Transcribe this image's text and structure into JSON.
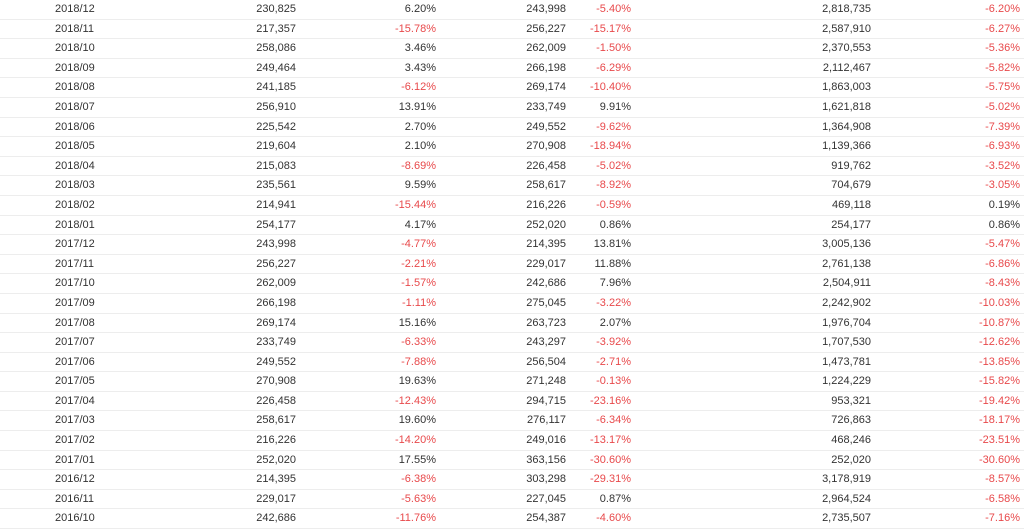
{
  "colors": {
    "text": "#333333",
    "negative": "#e8494b",
    "row_border": "#ededed",
    "background": "#ffffff"
  },
  "table": {
    "column_names": [
      "date-cell",
      "monthly-value-cell",
      "mom-change-cell",
      "prior-period-value-cell",
      "yoy-change-cell",
      "cumulative-value-cell",
      "cumulative-change-cell"
    ],
    "rows": [
      [
        "2018/12",
        "230,825",
        "6.20%",
        "243,998",
        "-5.40%",
        "2,818,735",
        "-6.20%"
      ],
      [
        "2018/11",
        "217,357",
        "-15.78%",
        "256,227",
        "-15.17%",
        "2,587,910",
        "-6.27%"
      ],
      [
        "2018/10",
        "258,086",
        "3.46%",
        "262,009",
        "-1.50%",
        "2,370,553",
        "-5.36%"
      ],
      [
        "2018/09",
        "249,464",
        "3.43%",
        "266,198",
        "-6.29%",
        "2,112,467",
        "-5.82%"
      ],
      [
        "2018/08",
        "241,185",
        "-6.12%",
        "269,174",
        "-10.40%",
        "1,863,003",
        "-5.75%"
      ],
      [
        "2018/07",
        "256,910",
        "13.91%",
        "233,749",
        "9.91%",
        "1,621,818",
        "-5.02%"
      ],
      [
        "2018/06",
        "225,542",
        "2.70%",
        "249,552",
        "-9.62%",
        "1,364,908",
        "-7.39%"
      ],
      [
        "2018/05",
        "219,604",
        "2.10%",
        "270,908",
        "-18.94%",
        "1,139,366",
        "-6.93%"
      ],
      [
        "2018/04",
        "215,083",
        "-8.69%",
        "226,458",
        "-5.02%",
        "919,762",
        "-3.52%"
      ],
      [
        "2018/03",
        "235,561",
        "9.59%",
        "258,617",
        "-8.92%",
        "704,679",
        "-3.05%"
      ],
      [
        "2018/02",
        "214,941",
        "-15.44%",
        "216,226",
        "-0.59%",
        "469,118",
        "0.19%"
      ],
      [
        "2018/01",
        "254,177",
        "4.17%",
        "252,020",
        "0.86%",
        "254,177",
        "0.86%"
      ],
      [
        "2017/12",
        "243,998",
        "-4.77%",
        "214,395",
        "13.81%",
        "3,005,136",
        "-5.47%"
      ],
      [
        "2017/11",
        "256,227",
        "-2.21%",
        "229,017",
        "11.88%",
        "2,761,138",
        "-6.86%"
      ],
      [
        "2017/10",
        "262,009",
        "-1.57%",
        "242,686",
        "7.96%",
        "2,504,911",
        "-8.43%"
      ],
      [
        "2017/09",
        "266,198",
        "-1.11%",
        "275,045",
        "-3.22%",
        "2,242,902",
        "-10.03%"
      ],
      [
        "2017/08",
        "269,174",
        "15.16%",
        "263,723",
        "2.07%",
        "1,976,704",
        "-10.87%"
      ],
      [
        "2017/07",
        "233,749",
        "-6.33%",
        "243,297",
        "-3.92%",
        "1,707,530",
        "-12.62%"
      ],
      [
        "2017/06",
        "249,552",
        "-7.88%",
        "256,504",
        "-2.71%",
        "1,473,781",
        "-13.85%"
      ],
      [
        "2017/05",
        "270,908",
        "19.63%",
        "271,248",
        "-0.13%",
        "1,224,229",
        "-15.82%"
      ],
      [
        "2017/04",
        "226,458",
        "-12.43%",
        "294,715",
        "-23.16%",
        "953,321",
        "-19.42%"
      ],
      [
        "2017/03",
        "258,617",
        "19.60%",
        "276,117",
        "-6.34%",
        "726,863",
        "-18.17%"
      ],
      [
        "2017/02",
        "216,226",
        "-14.20%",
        "249,016",
        "-13.17%",
        "468,246",
        "-23.51%"
      ],
      [
        "2017/01",
        "252,020",
        "17.55%",
        "363,156",
        "-30.60%",
        "252,020",
        "-30.60%"
      ],
      [
        "2016/12",
        "214,395",
        "-6.38%",
        "303,298",
        "-29.31%",
        "3,178,919",
        "-8.57%"
      ],
      [
        "2016/11",
        "229,017",
        "-5.63%",
        "227,045",
        "0.87%",
        "2,964,524",
        "-6.58%"
      ],
      [
        "2016/10",
        "242,686",
        "-11.76%",
        "254,387",
        "-4.60%",
        "2,735,507",
        "-7.16%"
      ]
    ]
  }
}
